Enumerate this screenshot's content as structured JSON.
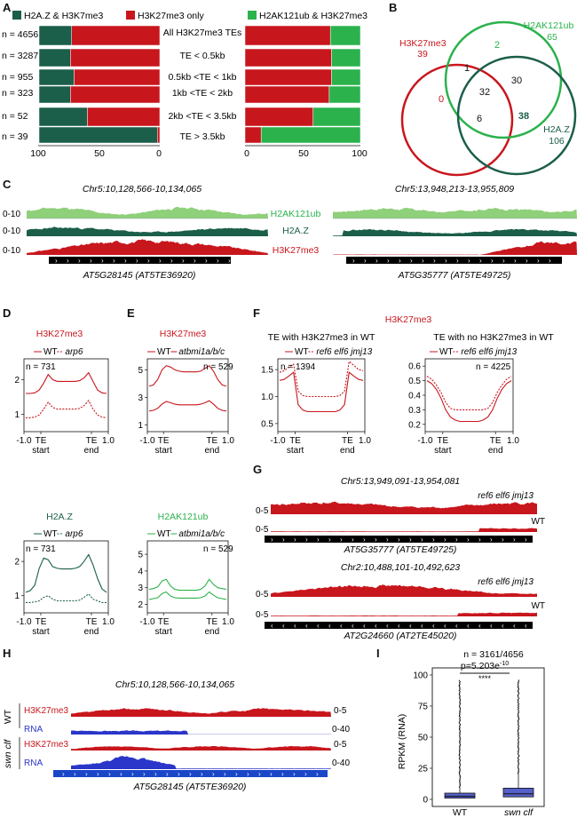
{
  "colors": {
    "h2az": "#1b5e4a",
    "h3k27": "#c8161d",
    "h2ak121": "#2bb24c",
    "h2ak121_light": "#8fd07a",
    "rna": "#2a35c9",
    "box": "#5560c8",
    "gene_bar": "#000000",
    "gene_bar_blue": "#1a46c8"
  },
  "panel_letters": {
    "a": "A",
    "b": "B",
    "c": "C",
    "d": "D",
    "e": "E",
    "f": "F",
    "g": "G",
    "h": "H",
    "i": "I"
  },
  "panel_a": {
    "legend": [
      "H2A.Z & H3K7me3",
      "H3K27me3 only",
      "H2AK121ub & H3K27me3"
    ],
    "categories": [
      "All H3K27me3 TEs",
      "TE < 0.5kb",
      "0.5kb <TE < 1kb",
      "1kb <TE < 2kb",
      "2kb <TE < 3.5kb",
      "TE > 3.5kb"
    ],
    "n_labels": [
      "n = 4656",
      "n = 3287",
      "n = 955",
      "n = 323",
      "n = 52",
      "n = 39"
    ],
    "left_axis_ticks": [
      "100",
      "50",
      "0"
    ],
    "right_axis_ticks": [
      "0",
      "50",
      "100"
    ]
  },
  "panel_b": {
    "sets": [
      {
        "name": "H3K27me3",
        "count": "39"
      },
      {
        "name": "H2AK121ub",
        "count": "65"
      },
      {
        "name": "H2A.Z",
        "count": "106"
      }
    ],
    "regions": {
      "k27_only": "0",
      "ub_only": "2",
      "k27_ub": "1",
      "ub_z": "30",
      "all3": "32",
      "k27_z": "6",
      "z_only": "38"
    }
  },
  "panel_c": {
    "loci": [
      "Chr5:10,128,566-10,134,065",
      "Chr5:13,948,213-13,955,809"
    ],
    "tracks": [
      "H2AK121ub",
      "H2A.Z",
      "H3K27me3"
    ],
    "scale": "0-10",
    "genes": [
      "AT5G28145 (AT5TE36920)",
      "AT5G35777 (AT5TE49725)"
    ]
  },
  "panel_d": {
    "top_title": "H3K27me3",
    "top_n": "n = 731",
    "top_yticks": [
      "2",
      "1"
    ],
    "bottom_title": "H2A.Z",
    "bottom_n": "n = 731",
    "bottom_yticks": [
      "2",
      "1"
    ],
    "legend": [
      "WT",
      "arp6"
    ],
    "x_ticks": [
      "-1.0",
      "TE",
      "TE",
      "1.0"
    ],
    "x_sub": [
      "start",
      "end"
    ]
  },
  "panel_e": {
    "top_title": "H3K27me3",
    "top_n": "n = 529",
    "top_yticks": [
      "5",
      "3",
      "1"
    ],
    "bottom_title": "H2AK121ub",
    "bottom_n": "n = 529",
    "bottom_yticks": [
      "5",
      "4",
      "3",
      "2"
    ],
    "legend": [
      "WT",
      "atbmi1a/b/c"
    ],
    "x_ticks": [
      "-1.0",
      "TE",
      "TE",
      "1.0"
    ],
    "x_sub": [
      "start",
      "end"
    ]
  },
  "panel_f": {
    "title": "H3K27me3",
    "sub_left": "TE with H3K27me3 in WT",
    "sub_right": "TE with no H3K27me3 in WT",
    "legend": [
      "WT",
      "ref6 elf6 jmj13"
    ],
    "left_n": "n = 1394",
    "left_yticks": [
      "1.5",
      "1.0",
      "0.5"
    ],
    "right_n": "n = 4225",
    "right_yticks": [
      "0.6",
      "0.5",
      "0.4",
      "0.3",
      "0.2"
    ],
    "x_ticks": [
      "-1.0",
      "TE",
      "TE",
      "1.0"
    ],
    "x_sub": [
      "start",
      "end"
    ]
  },
  "panel_g": {
    "loci": [
      "Chr5:13,949,091-13,954,081",
      "Chr2:10,488,101-10,492,623"
    ],
    "mutant": "ref6 elf6 jmj13",
    "wt": "WT",
    "scale": "0-5",
    "genes": [
      "AT5G35777 (AT5TE49725)",
      "AT2G24660 (AT2TE45020)"
    ]
  },
  "panel_h": {
    "locus": "Chr5:10,128,566-10,134,065",
    "groups": [
      "WT",
      "swn clf"
    ],
    "tracks": [
      "H3K27me3",
      "RNA"
    ],
    "scales": [
      "0-5",
      "0-40"
    ],
    "gene": "AT5G28145 (AT5TE36920)"
  },
  "panel_i": {
    "n_text": "n = 3161/4656",
    "p_text": "p=5.203e",
    "p_exp": "-10",
    "stars": "****",
    "ylabel": "RPKM (RNA)",
    "yticks": [
      "100",
      "75",
      "50",
      "25",
      "0"
    ],
    "groups": [
      "WT",
      "swn clf"
    ]
  },
  "chart_data": [
    {
      "type": "bar",
      "panel": "A-left",
      "categories": [
        "All H3K27me3 TEs",
        "TE < 0.5kb",
        "0.5kb <TE < 1kb",
        "1kb <TE < 2kb",
        "2kb <TE < 3.5kb",
        "TE > 3.5kb"
      ],
      "series": [
        {
          "name": "H2A.Z & H3K7me3",
          "values": [
            27,
            26,
            29,
            26,
            40,
            98
          ]
        },
        {
          "name": "H3K27me3 only",
          "values": [
            73,
            74,
            71,
            74,
            60,
            2
          ]
        }
      ],
      "xlim": [
        100,
        0
      ]
    },
    {
      "type": "bar",
      "panel": "A-right",
      "categories": [
        "All H3K27me3 TEs",
        "TE < 0.5kb",
        "0.5kb <TE < 1kb",
        "1kb <TE < 2kb",
        "2kb <TE < 3.5kb",
        "TE > 3.5kb"
      ],
      "series": [
        {
          "name": "H3K27me3 only",
          "values": [
            74,
            75,
            75,
            73,
            59,
            14
          ]
        },
        {
          "name": "H2AK121ub & H3K27me3",
          "values": [
            26,
            25,
            25,
            27,
            41,
            86
          ]
        }
      ],
      "xlim": [
        0,
        100
      ]
    },
    {
      "type": "line",
      "panel": "D-top",
      "ylim": [
        0.5,
        2.6
      ],
      "series": [
        {
          "name": "WT",
          "values": [
            1.6,
            1.6,
            1.62,
            1.7,
            1.9,
            2.15,
            2.0,
            1.95,
            1.95,
            1.95,
            1.95,
            1.95,
            1.97,
            2.05,
            2.2,
            1.95,
            1.7,
            1.62,
            1.6
          ]
        },
        {
          "name": "arp6",
          "values": [
            0.9,
            0.9,
            0.92,
            0.98,
            1.15,
            1.35,
            1.2,
            1.15,
            1.15,
            1.15,
            1.15,
            1.15,
            1.17,
            1.25,
            1.4,
            1.15,
            0.98,
            0.92,
            0.9
          ]
        }
      ]
    },
    {
      "type": "line",
      "panel": "D-bottom",
      "ylim": [
        0.5,
        2.6
      ],
      "series": [
        {
          "name": "WT",
          "values": [
            1.1,
            1.15,
            1.3,
            1.8,
            2.1,
            2.05,
            1.85,
            1.8,
            1.78,
            1.78,
            1.78,
            1.8,
            1.85,
            2.0,
            2.2,
            1.9,
            1.5,
            1.2,
            1.1
          ]
        },
        {
          "name": "arp6",
          "values": [
            0.8,
            0.8,
            0.82,
            0.85,
            0.95,
            1.0,
            0.9,
            0.85,
            0.85,
            0.85,
            0.85,
            0.85,
            0.87,
            0.95,
            1.05,
            0.9,
            0.85,
            0.8,
            0.8
          ]
        }
      ]
    },
    {
      "type": "line",
      "panel": "E-top",
      "ylim": [
        0.5,
        5.8
      ],
      "series": [
        {
          "name": "WT",
          "values": [
            3.8,
            3.9,
            4.3,
            5.0,
            5.3,
            5.2,
            5.0,
            4.9,
            4.85,
            4.85,
            4.85,
            4.85,
            4.9,
            5.1,
            5.3,
            4.9,
            4.3,
            3.9,
            3.8
          ]
        },
        {
          "name": "atbmi1a/b/c",
          "values": [
            2.0,
            2.05,
            2.2,
            2.5,
            2.7,
            2.6,
            2.5,
            2.45,
            2.45,
            2.45,
            2.45,
            2.45,
            2.5,
            2.6,
            2.75,
            2.5,
            2.2,
            2.05,
            2.0
          ]
        }
      ]
    },
    {
      "type": "line",
      "panel": "E-bottom",
      "ylim": [
        1.5,
        5.8
      ],
      "series": [
        {
          "name": "WT",
          "values": [
            2.9,
            2.95,
            3.05,
            3.4,
            3.5,
            3.1,
            2.9,
            2.85,
            2.85,
            2.85,
            2.85,
            2.85,
            2.9,
            3.1,
            3.5,
            3.2,
            3.0,
            2.95,
            2.9
          ]
        },
        {
          "name": "atbmi1a/b/c",
          "values": [
            2.3,
            2.35,
            2.4,
            2.65,
            2.75,
            2.5,
            2.4,
            2.38,
            2.38,
            2.38,
            2.38,
            2.38,
            2.4,
            2.5,
            2.75,
            2.55,
            2.4,
            2.35,
            2.3
          ]
        }
      ]
    },
    {
      "type": "line",
      "panel": "F-left",
      "ylim": [
        0.35,
        1.7
      ],
      "series": [
        {
          "name": "WT",
          "values": [
            1.3,
            1.32,
            1.38,
            1.45,
            0.85,
            0.75,
            0.72,
            0.72,
            0.72,
            0.72,
            0.72,
            0.72,
            0.72,
            0.75,
            0.85,
            1.45,
            1.38,
            1.32,
            1.3
          ]
        },
        {
          "name": "ref6 elf6 jmj13",
          "values": [
            1.45,
            1.48,
            1.55,
            1.6,
            1.1,
            1.02,
            1.0,
            1.0,
            1.0,
            1.0,
            1.0,
            1.0,
            1.0,
            1.02,
            1.1,
            1.65,
            1.58,
            1.5,
            1.48
          ]
        }
      ]
    },
    {
      "type": "line",
      "panel": "F-right",
      "ylim": [
        0.15,
        0.65
      ],
      "series": [
        {
          "name": "WT",
          "values": [
            0.5,
            0.48,
            0.44,
            0.38,
            0.3,
            0.25,
            0.23,
            0.22,
            0.22,
            0.22,
            0.22,
            0.22,
            0.23,
            0.25,
            0.3,
            0.38,
            0.44,
            0.48,
            0.5
          ]
        },
        {
          "name": "ref6 elf6 jmj13",
          "values": [
            0.53,
            0.51,
            0.47,
            0.42,
            0.35,
            0.31,
            0.3,
            0.3,
            0.3,
            0.3,
            0.3,
            0.3,
            0.3,
            0.31,
            0.35,
            0.42,
            0.47,
            0.51,
            0.53
          ]
        }
      ]
    },
    {
      "type": "box",
      "panel": "I",
      "categories": [
        "WT",
        "swn clf"
      ],
      "q1": [
        1,
        2
      ],
      "median": [
        2.5,
        4.5
      ],
      "q3": [
        5,
        9
      ],
      "whisker_high": [
        10,
        21
      ],
      "outlier_max": [
        96,
        96
      ],
      "ylim": [
        0,
        100
      ],
      "ylabel": "RPKM (RNA)"
    }
  ]
}
